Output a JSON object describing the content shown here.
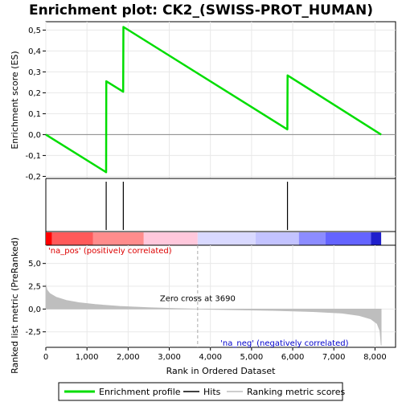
{
  "chart_data": {
    "type": "line",
    "title": "Enrichment plot: CK2_(SWISS-PROT_HUMAN)",
    "colors": {
      "profile": "#00dd00",
      "hits": "#000000",
      "metric_fill": "#bebebe",
      "zero_cross_line": "#aaaaaa",
      "pos_label": "#dd0000",
      "neg_label": "#0000cc",
      "grid": "#e8e8e8"
    },
    "top_panel": {
      "ylabel": "Enrichment score (ES)",
      "ylim": [
        -0.21,
        0.54
      ],
      "yticks": [
        -0.2,
        -0.1,
        0.0,
        0.1,
        0.2,
        0.3,
        0.4,
        0.5
      ],
      "ytick_labels": [
        "-0,2",
        "-0,1",
        "0,0",
        "0,1",
        "0,2",
        "0,3",
        "0,4",
        "0,5"
      ],
      "profile_points": [
        {
          "rank": 0,
          "es": 0.0
        },
        {
          "rank": 1465,
          "es": -0.18
        },
        {
          "rank": 1470,
          "es": 0.255
        },
        {
          "rank": 1880,
          "es": 0.205
        },
        {
          "rank": 1885,
          "es": 0.515
        },
        {
          "rank": 5870,
          "es": 0.025
        },
        {
          "rank": 5875,
          "es": 0.283
        },
        {
          "rank": 8150,
          "es": 0.0
        }
      ]
    },
    "hits": [
      1467,
      1883,
      5873
    ],
    "heatbar": {
      "segments": [
        {
          "from": 0,
          "to": 150,
          "color": "#ff0000"
        },
        {
          "from": 150,
          "to": 1150,
          "color": "#ff5a5a"
        },
        {
          "from": 1150,
          "to": 2380,
          "color": "#ff8c8c"
        },
        {
          "from": 2380,
          "to": 3690,
          "color": "#ffc8dc"
        },
        {
          "from": 3690,
          "to": 5100,
          "color": "#d9d9ff"
        },
        {
          "from": 5100,
          "to": 6150,
          "color": "#c3c3ff"
        },
        {
          "from": 6150,
          "to": 6800,
          "color": "#8c8cff"
        },
        {
          "from": 6800,
          "to": 7900,
          "color": "#6464ff"
        },
        {
          "from": 7900,
          "to": 8150,
          "color": "#2020cc"
        }
      ]
    },
    "bottom_panel": {
      "ylabel": "Ranked list metric (PreRanked)",
      "ylim": [
        -4.2,
        7.0
      ],
      "yticks": [
        -2.5,
        0.0,
        2.5,
        5.0
      ],
      "ytick_labels": [
        "-2,5",
        "0,0",
        "2,5",
        "5,0"
      ],
      "metric_points": [
        {
          "rank": 0,
          "value": 2.7
        },
        {
          "rank": 30,
          "value": 2.1
        },
        {
          "rank": 100,
          "value": 1.7
        },
        {
          "rank": 250,
          "value": 1.3
        },
        {
          "rank": 500,
          "value": 0.95
        },
        {
          "rank": 800,
          "value": 0.7
        },
        {
          "rank": 1200,
          "value": 0.5
        },
        {
          "rank": 1800,
          "value": 0.3
        },
        {
          "rank": 2500,
          "value": 0.15
        },
        {
          "rank": 3200,
          "value": 0.05
        },
        {
          "rank": 3690,
          "value": 0.0
        },
        {
          "rank": 4500,
          "value": -0.07
        },
        {
          "rank": 5500,
          "value": -0.15
        },
        {
          "rank": 6500,
          "value": -0.28
        },
        {
          "rank": 7200,
          "value": -0.45
        },
        {
          "rank": 7600,
          "value": -0.7
        },
        {
          "rank": 7900,
          "value": -1.1
        },
        {
          "rank": 8050,
          "value": -1.6
        },
        {
          "rank": 8120,
          "value": -2.4
        },
        {
          "rank": 8150,
          "value": -4.0
        }
      ],
      "zero_cross": 3690,
      "zero_cross_label": "Zero cross at 3690",
      "pos_label": "'na_pos' (positively correlated)",
      "neg_label": "'na_neg' (negatively correlated)"
    },
    "xaxis": {
      "xlabel": "Rank in Ordered Dataset",
      "xlim": [
        0,
        8500
      ],
      "xticks": [
        0,
        1000,
        2000,
        3000,
        4000,
        5000,
        6000,
        7000,
        8000
      ],
      "xtick_labels": [
        "0",
        "1,000",
        "2,000",
        "3,000",
        "4,000",
        "5,000",
        "6,000",
        "7,000",
        "8,000"
      ]
    },
    "legend": {
      "placement": "bottom",
      "entries": [
        {
          "label": "Enrichment profile"
        },
        {
          "label": "Hits"
        },
        {
          "label": "Ranking metric scores"
        }
      ]
    }
  }
}
